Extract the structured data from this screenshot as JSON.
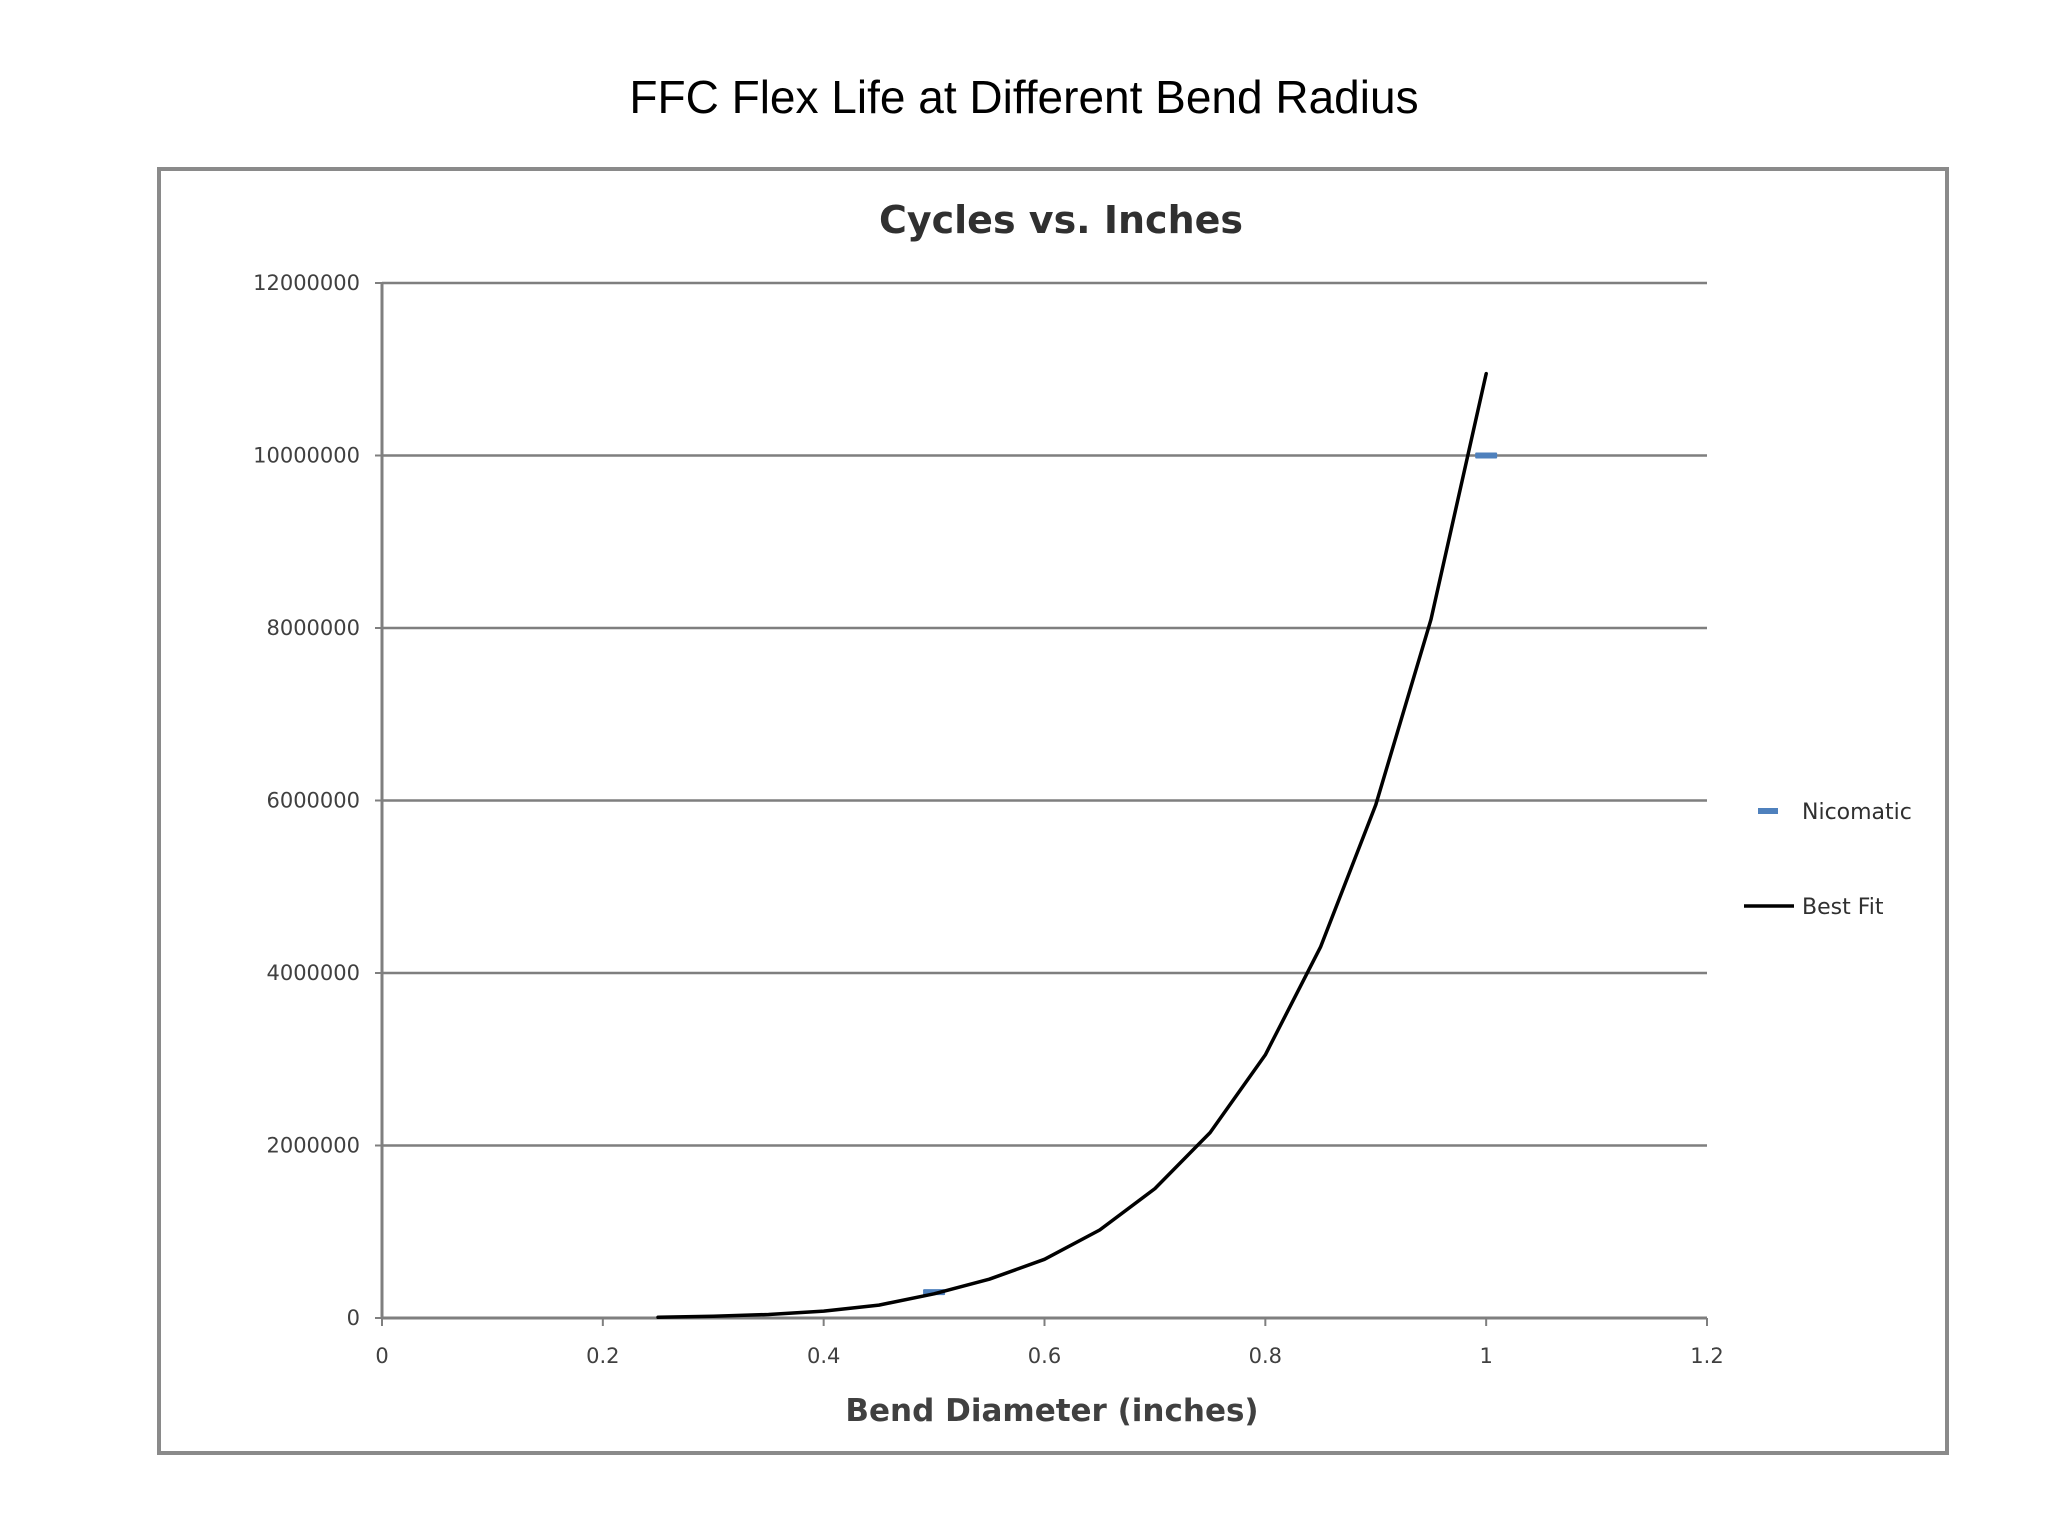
{
  "page": {
    "title": "FFC Flex Life at Different Bend Radius"
  },
  "chart_data": {
    "type": "line",
    "title": "Cycles vs. Inches",
    "xlabel": "Bend Diameter (inches)",
    "ylabel": "",
    "xlim": [
      0,
      1.2
    ],
    "ylim": [
      0,
      12000000
    ],
    "x_ticks": [
      "0",
      "0.2",
      "0.4",
      "0.6",
      "0.8",
      "1",
      "1.2"
    ],
    "y_ticks": [
      "0",
      "2000000",
      "4000000",
      "6000000",
      "8000000",
      "10000000",
      "12000000"
    ],
    "grid": "horizontal",
    "legend_position": "right",
    "series": [
      {
        "name": "Nicomatic",
        "kind": "markers",
        "color": "#4f81bd",
        "x": [
          0.5,
          1.0
        ],
        "y": [
          300000,
          10000000
        ]
      },
      {
        "name": "Best Fit",
        "kind": "line",
        "color": "#000000",
        "x": [
          0.25,
          0.3,
          0.35,
          0.4,
          0.45,
          0.5,
          0.55,
          0.6,
          0.65,
          0.7,
          0.75,
          0.8,
          0.85,
          0.9,
          0.95,
          1.0
        ],
        "y": [
          8000,
          20000,
          40000,
          80000,
          150000,
          280000,
          450000,
          680000,
          1020000,
          1500000,
          2150000,
          3050000,
          4300000,
          5950000,
          8100000,
          10950000
        ]
      }
    ]
  }
}
